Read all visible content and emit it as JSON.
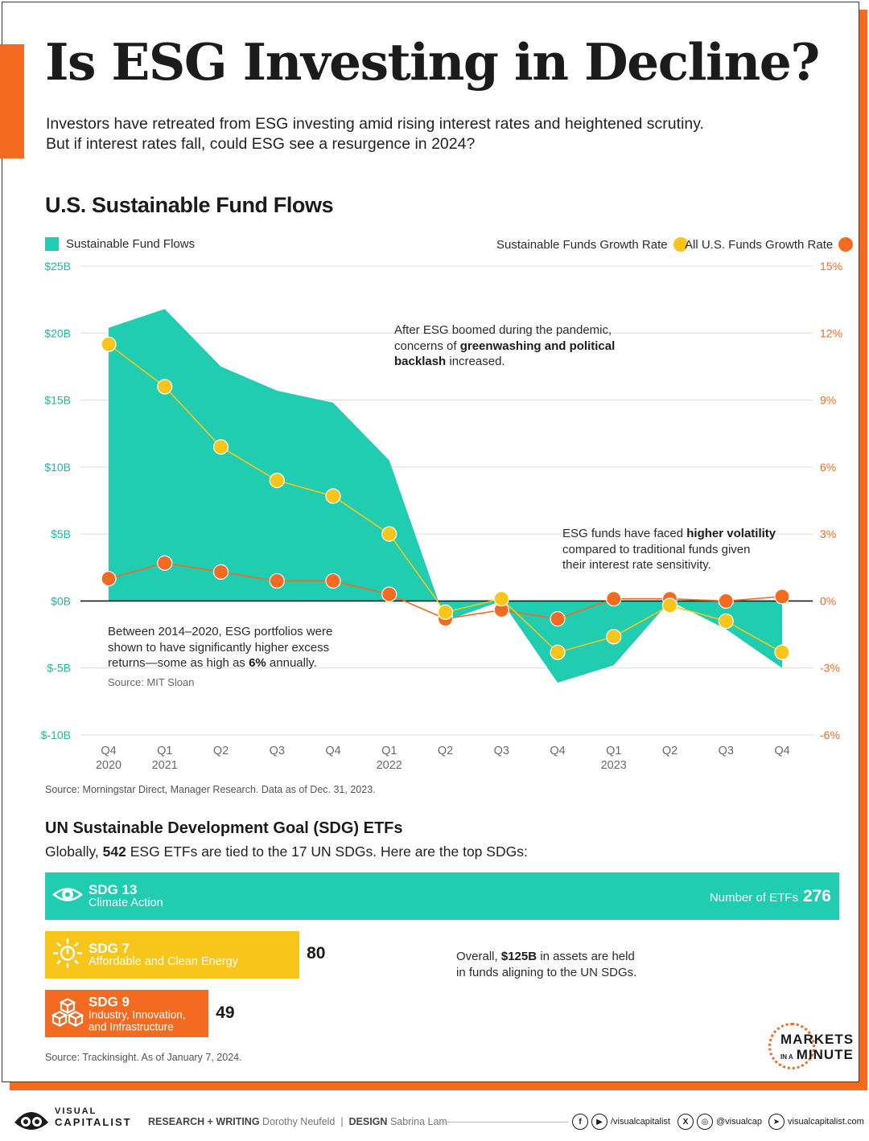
{
  "header": {
    "title": "Is ESG Investing in Decline?",
    "subtitle_line1": "Investors have retreated from ESG investing amid rising interest rates and heightened scrutiny.",
    "subtitle_line2": "But if interest rates fall, could ESG see a resurgence in 2024?"
  },
  "fund_flows": {
    "section_title": "U.S. Sustainable Fund Flows",
    "legend": {
      "flows": "Sustainable Fund Flows",
      "sustainable_growth": "Sustainable Funds Growth Rate",
      "all_growth": "All U.S. Funds Growth Rate"
    },
    "annotations": {
      "a1_pre": "After ESG boomed during the pandemic,",
      "a1_mid": "concerns of ",
      "a1_bold1": "greenwashing and political",
      "a1_bold2": "backlash",
      "a1_post": " increased.",
      "a2_pre": "ESG funds have faced ",
      "a2_bold": "higher volatility",
      "a2_line2": "compared to traditional funds given",
      "a2_line3": "their interest rate sensitivity.",
      "a3_line1": "Between 2014–2020, ESG portfolios were",
      "a3_line2": "shown to have significantly higher excess",
      "a3_pre": "returns—some as high as ",
      "a3_bold": "6%",
      "a3_post": " annually.",
      "a3_source": "Source: MIT Sloan"
    },
    "source": "Source: Morningstar Direct, Manager Research. Data as of Dec. 31, 2023."
  },
  "chart_data": {
    "type": "area",
    "title": "U.S. Sustainable Fund Flows",
    "categories": [
      "Q4 2020",
      "Q1 2021",
      "Q2",
      "Q3",
      "Q4",
      "Q1 2022",
      "Q2",
      "Q3",
      "Q4",
      "Q1 2023",
      "Q2",
      "Q3",
      "Q4"
    ],
    "x_tick_labels": [
      {
        "top": "Q4",
        "bottom": "2020"
      },
      {
        "top": "Q1",
        "bottom": "2021"
      },
      {
        "top": "Q2",
        "bottom": ""
      },
      {
        "top": "Q3",
        "bottom": ""
      },
      {
        "top": "Q4",
        "bottom": ""
      },
      {
        "top": "Q1",
        "bottom": "2022"
      },
      {
        "top": "Q2",
        "bottom": ""
      },
      {
        "top": "Q3",
        "bottom": ""
      },
      {
        "top": "Q4",
        "bottom": ""
      },
      {
        "top": "Q1",
        "bottom": "2023"
      },
      {
        "top": "Q2",
        "bottom": ""
      },
      {
        "top": "Q3",
        "bottom": ""
      },
      {
        "top": "Q4",
        "bottom": ""
      }
    ],
    "left_axis": {
      "unit": "$B",
      "ylim": [
        -10,
        25
      ],
      "ticks": [
        25,
        20,
        15,
        10,
        5,
        0,
        -5,
        -10
      ],
      "tick_labels": [
        "$25B",
        "$20B",
        "$15B",
        "$10B",
        "$5B",
        "$0B",
        "$-5B",
        "$-10B"
      ]
    },
    "right_axis": {
      "unit": "%",
      "ylim": [
        -6,
        15
      ],
      "ticks": [
        15,
        12,
        9,
        6,
        3,
        0,
        -3,
        -6
      ],
      "tick_labels": [
        "15%",
        "12%",
        "9%",
        "6%",
        "3%",
        "0%",
        "-3%",
        "-6%"
      ]
    },
    "series": [
      {
        "name": "Sustainable Fund Flows",
        "axis": "left",
        "kind": "area",
        "values": [
          20.4,
          21.8,
          17.5,
          15.7,
          14.8,
          10.5,
          -1.5,
          0.0,
          -6.1,
          -4.8,
          0.0,
          -2.1,
          -5.0
        ]
      },
      {
        "name": "Sustainable Funds Growth Rate",
        "axis": "right",
        "kind": "line",
        "values": [
          11.5,
          9.6,
          6.9,
          5.4,
          4.7,
          3.0,
          -0.5,
          0.1,
          -2.3,
          -1.6,
          -0.2,
          -0.9,
          -2.3
        ]
      },
      {
        "name": "All U.S. Funds Growth Rate",
        "axis": "right",
        "kind": "line",
        "values": [
          1.0,
          1.7,
          1.3,
          0.9,
          0.9,
          0.3,
          -0.8,
          -0.4,
          -0.8,
          0.1,
          0.1,
          0.0,
          0.2
        ]
      }
    ],
    "grid": true,
    "colors": {
      "area": "#20cdb0",
      "sustainable_line": "#f8c51a",
      "all_line": "#f26b21",
      "left_axis_text": "#1eb89c",
      "right_axis_text": "#f26b21"
    }
  },
  "sdg": {
    "title": "UN Sustainable Development Goal (SDG) ETFs",
    "intro_pre": "Globally, ",
    "intro_bold": "542",
    "intro_post": " ESG ETFs are tied to the 17 UN SDGs. Here are the top SDGs:",
    "bars": [
      {
        "code": "SDG 13",
        "name": "Climate Action",
        "value": 276,
        "color": "#20cdb0",
        "icon": "eye-globe-icon"
      },
      {
        "code": "SDG 7",
        "name": "Affordable and Clean Energy",
        "value": 80,
        "color": "#f8c51a",
        "icon": "sun-power-icon"
      },
      {
        "code": "SDG 9",
        "name_line1": "Industry, Innovation,",
        "name_line2": "and Infrastructure",
        "value": 49,
        "color": "#f26b21",
        "icon": "cubes-icon"
      }
    ],
    "number_of_etfs_label": "Number of ETFs",
    "overall_pre": "Overall, ",
    "overall_bold": "$125B",
    "overall_post": " in assets are held",
    "overall_line2": "in funds aligning to the UN SDGs.",
    "source": "Source: Trackinsight. As of January 7, 2024."
  },
  "branding": {
    "mim_line1": "MARKETS",
    "mim_small": "IN A",
    "mim_line2": "MINUTE",
    "vc_line1": "VISUAL",
    "vc_line2": "CAPITALIST",
    "credits_label1": "RESEARCH + WRITING",
    "credits_name1": "Dorothy Neufeld",
    "credits_sep": "|",
    "credits_label2": "DESIGN",
    "credits_name2": "Sabrina Lam",
    "social1": "/visualcapitalist",
    "social2": "@visualcap",
    "social3": "visualcapitalist.com"
  }
}
